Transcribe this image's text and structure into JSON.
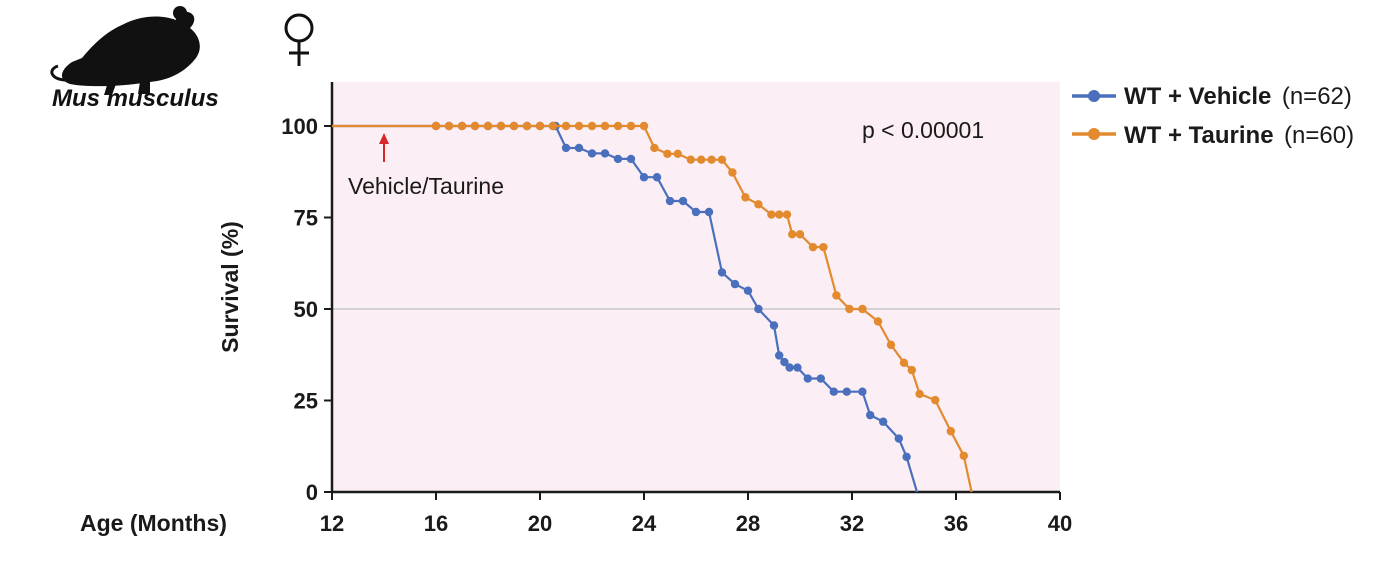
{
  "header": {
    "species": "Mus musculus",
    "sex_symbol": "♀",
    "icons": [
      "mouse-icon",
      "female-symbol-icon"
    ]
  },
  "colors": {
    "vehicle": "#4a6fbd",
    "taurine": "#e38a2e",
    "plot_background": "#fbeef4",
    "arrow": "#d62828",
    "reference_line": "#c8c8c8",
    "axis": "#1a1a1a"
  },
  "chart_data": {
    "type": "line",
    "subtype": "kaplan-meier-step",
    "title": "",
    "xlabel": "Age (Months)",
    "ylabel": "Survival (%)",
    "xlim": [
      12,
      40
    ],
    "ylim": [
      0,
      112
    ],
    "xticks": [
      12,
      16,
      20,
      24,
      28,
      32,
      36,
      40
    ],
    "yticks": [
      0,
      25,
      50,
      75,
      100
    ],
    "reference_line_y": 50,
    "grid": false,
    "legend_position": "right",
    "annotations": {
      "p_value": "p < 0.00001",
      "treatment_label": "Vehicle/Taurine",
      "treatment_start_x": 14
    },
    "series": [
      {
        "name": "WT + Vehicle",
        "n_label": "(n=62)",
        "color_key": "vehicle",
        "start_x": 12,
        "markers_from_x": 16,
        "points": [
          [
            20.6,
            100
          ],
          [
            21.0,
            94
          ],
          [
            21.5,
            94
          ],
          [
            22.0,
            92.5
          ],
          [
            22.5,
            92.5
          ],
          [
            23.0,
            91
          ],
          [
            23.5,
            91
          ],
          [
            24.0,
            86
          ],
          [
            24.5,
            86
          ],
          [
            25.0,
            79.5
          ],
          [
            25.5,
            79.5
          ],
          [
            26.0,
            76.5
          ],
          [
            26.5,
            76.5
          ],
          [
            27.0,
            60
          ],
          [
            27.5,
            56.8
          ],
          [
            28.0,
            55
          ],
          [
            28.4,
            50
          ],
          [
            29.0,
            45.5
          ],
          [
            29.2,
            37.3
          ],
          [
            29.4,
            35.5
          ],
          [
            29.6,
            34
          ],
          [
            29.9,
            34
          ],
          [
            30.3,
            31
          ],
          [
            30.8,
            31
          ],
          [
            31.3,
            27.4
          ],
          [
            31.8,
            27.4
          ],
          [
            32.4,
            27.4
          ],
          [
            32.7,
            21
          ],
          [
            33.2,
            19.2
          ],
          [
            33.8,
            14.6
          ],
          [
            34.1,
            9.6
          ],
          [
            34.5,
            0
          ]
        ]
      },
      {
        "name": "WT + Taurine",
        "n_label": "(n=60)",
        "color_key": "taurine",
        "start_x": 12,
        "markers_from_x": 16,
        "points": [
          [
            24.0,
            100
          ],
          [
            24.4,
            94
          ],
          [
            24.9,
            92.4
          ],
          [
            25.3,
            92.4
          ],
          [
            25.8,
            90.8
          ],
          [
            26.2,
            90.8
          ],
          [
            26.6,
            90.8
          ],
          [
            27.0,
            90.8
          ],
          [
            27.4,
            87.3
          ],
          [
            27.9,
            80.5
          ],
          [
            28.4,
            78.6
          ],
          [
            28.9,
            75.8
          ],
          [
            29.2,
            75.8
          ],
          [
            29.5,
            75.8
          ],
          [
            29.7,
            70.4
          ],
          [
            30.0,
            70.4
          ],
          [
            30.5,
            66.9
          ],
          [
            30.9,
            66.9
          ],
          [
            31.4,
            53.7
          ],
          [
            31.9,
            50
          ],
          [
            32.4,
            50
          ],
          [
            33.0,
            46.6
          ],
          [
            33.5,
            40.2
          ],
          [
            34.0,
            35.3
          ],
          [
            34.3,
            33.3
          ],
          [
            34.6,
            26.8
          ],
          [
            35.2,
            25.1
          ],
          [
            35.8,
            16.6
          ],
          [
            36.3,
            9.9
          ],
          [
            36.6,
            0
          ]
        ]
      }
    ]
  }
}
